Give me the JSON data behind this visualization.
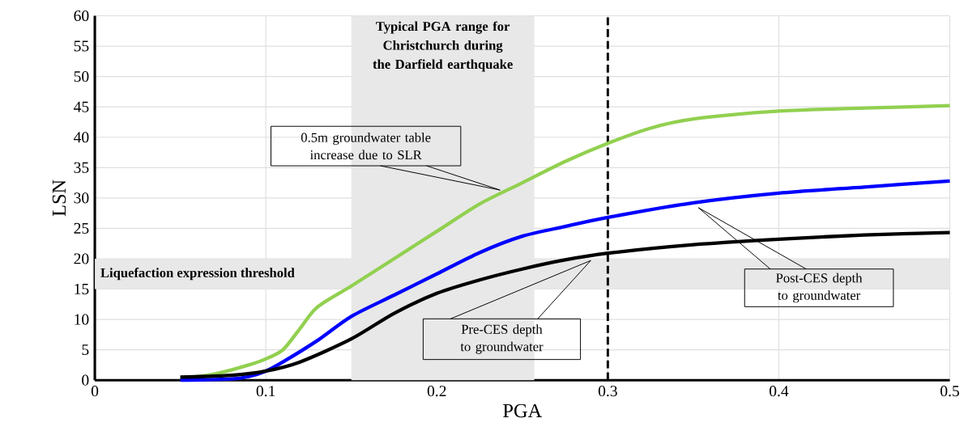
{
  "chart_data": {
    "type": "line",
    "xlabel": "PGA",
    "ylabel": "LSN",
    "xlim": [
      0,
      0.5
    ],
    "ylim": [
      0,
      60
    ],
    "xticks": [
      0,
      0.1,
      0.2,
      0.3,
      0.4,
      0.5
    ],
    "yticks": [
      0,
      5,
      10,
      15,
      20,
      25,
      30,
      35,
      40,
      45,
      50,
      55,
      60
    ],
    "grid": true,
    "series": [
      {
        "color": "#92d050",
        "x": [
          0.05,
          0.07,
          0.09,
          0.1,
          0.11,
          0.12,
          0.13,
          0.15,
          0.175,
          0.2,
          0.225,
          0.25,
          0.275,
          0.3,
          0.325,
          0.35,
          0.4,
          0.45,
          0.5
        ],
        "values": [
          0.3,
          1,
          2.5,
          3.5,
          5,
          8.5,
          12,
          15.5,
          20,
          24.5,
          29,
          32.5,
          36,
          39,
          41.5,
          43,
          44.3,
          44.8,
          45.2
        ]
      },
      {
        "color": "#0000ff",
        "x": [
          0.05,
          0.08,
          0.09,
          0.1,
          0.11,
          0.13,
          0.15,
          0.175,
          0.2,
          0.225,
          0.25,
          0.275,
          0.3,
          0.35,
          0.4,
          0.45,
          0.5
        ],
        "values": [
          0,
          0.2,
          0.6,
          1.5,
          3,
          6.5,
          10.5,
          14,
          17.5,
          21,
          23.7,
          25.3,
          26.8,
          29.2,
          30.8,
          31.8,
          32.8
        ]
      },
      {
        "color": "#000000",
        "x": [
          0.05,
          0.08,
          0.1,
          0.12,
          0.15,
          0.175,
          0.2,
          0.225,
          0.25,
          0.275,
          0.3,
          0.35,
          0.4,
          0.45,
          0.5
        ],
        "values": [
          0.5,
          0.8,
          1.5,
          3,
          6.8,
          11,
          14.3,
          16.5,
          18.3,
          19.8,
          20.9,
          22.3,
          23.2,
          23.9,
          24.3
        ]
      }
    ],
    "bands": [
      {
        "axis": "x",
        "from": 0.15,
        "to": 0.257,
        "label": "Typical PGA range for Christchurch during the Darfield earthquake",
        "color": "#e8e8e8"
      },
      {
        "axis": "y",
        "from": 15,
        "to": 20,
        "label": "Liquefaction expression threshold",
        "color": "#e8e8e8"
      }
    ],
    "annotations": [
      "0.5m groundwater table increase due to SLR",
      "Post-CES depth to groundwater",
      "Pre-CES depth to groundwater"
    ],
    "ref_lines": [
      {
        "axis": "x",
        "value": 0.3,
        "color": "#000000",
        "line_style": "dashed"
      }
    ]
  }
}
